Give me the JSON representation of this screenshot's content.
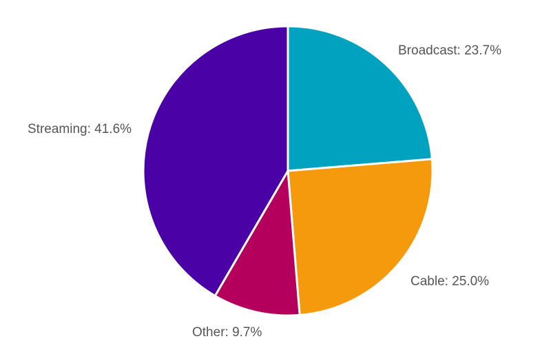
{
  "chart_data": {
    "type": "pie",
    "categories": [
      "Broadcast",
      "Cable",
      "Other",
      "Streaming"
    ],
    "values": [
      23.7,
      25.0,
      9.7,
      41.6
    ],
    "labels": [
      "Broadcast: 23.7%",
      "Cable: 25.0%",
      "Other: 9.7%",
      "Streaming: 41.6%"
    ],
    "colors": [
      "#00a2bf",
      "#f59a0c",
      "#b4005c",
      "#4a02a6"
    ],
    "start_angle_deg": 0,
    "direction": "clockwise",
    "legend": "none",
    "title": ""
  }
}
